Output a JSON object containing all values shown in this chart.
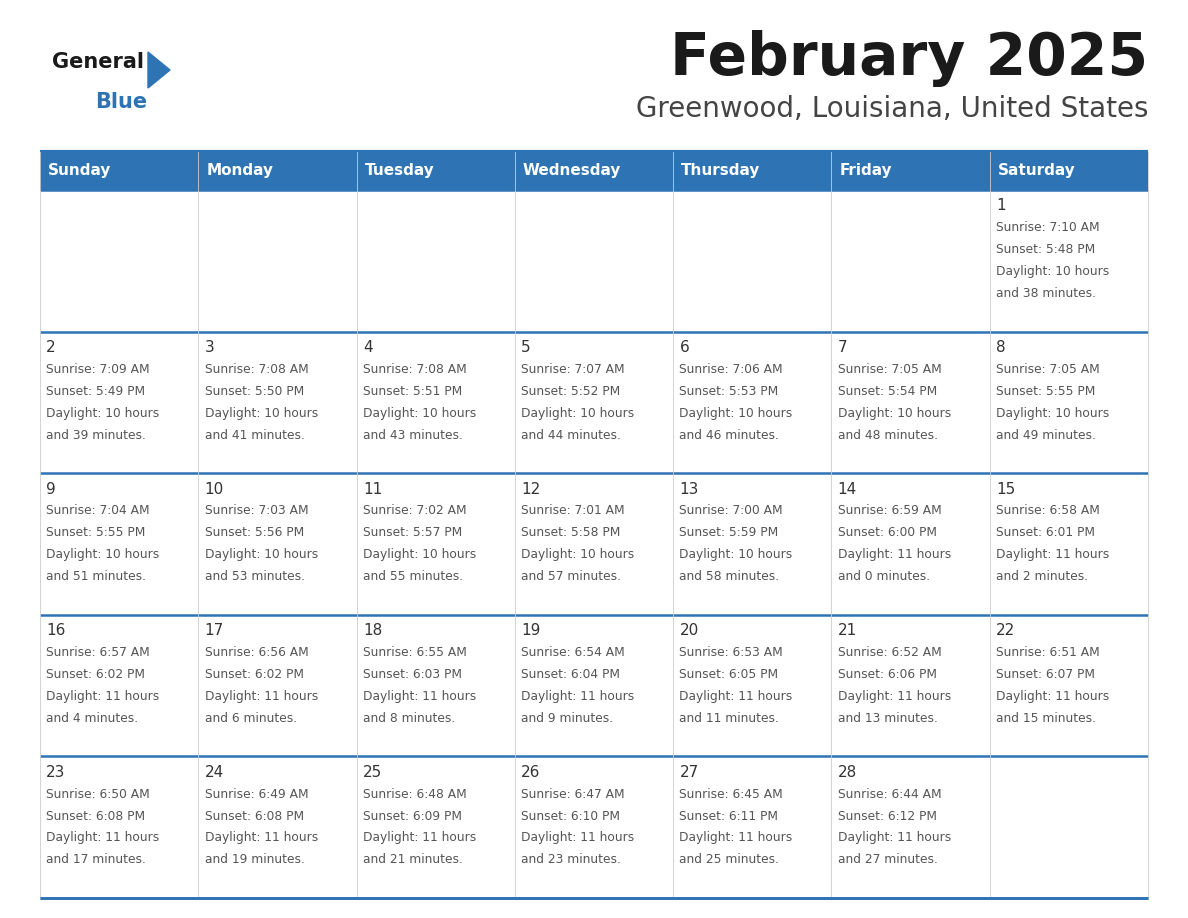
{
  "title": "February 2025",
  "subtitle": "Greenwood, Louisiana, United States",
  "header_bg": "#2E74B5",
  "header_text_color": "#FFFFFF",
  "border_color": "#2E74B5",
  "row_sep_color": "#2E74B5",
  "col_sep_color": "#CCCCCC",
  "cell_bg": "#FFFFFF",
  "title_color": "#1A1A1A",
  "subtitle_color": "#444444",
  "day_num_color": "#333333",
  "cell_text_color": "#555555",
  "logo_general_color": "#1A1A1A",
  "logo_blue_color": "#2E74B5",
  "logo_triangle_color": "#2E74B5",
  "day_headers": [
    "Sunday",
    "Monday",
    "Tuesday",
    "Wednesday",
    "Thursday",
    "Friday",
    "Saturday"
  ],
  "calendar": [
    [
      {
        "day": "",
        "sunrise": "",
        "sunset": "",
        "daylight": ""
      },
      {
        "day": "",
        "sunrise": "",
        "sunset": "",
        "daylight": ""
      },
      {
        "day": "",
        "sunrise": "",
        "sunset": "",
        "daylight": ""
      },
      {
        "day": "",
        "sunrise": "",
        "sunset": "",
        "daylight": ""
      },
      {
        "day": "",
        "sunrise": "",
        "sunset": "",
        "daylight": ""
      },
      {
        "day": "",
        "sunrise": "",
        "sunset": "",
        "daylight": ""
      },
      {
        "day": "1",
        "sunrise": "7:10 AM",
        "sunset": "5:48 PM",
        "daylight": "10 hours\nand 38 minutes."
      }
    ],
    [
      {
        "day": "2",
        "sunrise": "7:09 AM",
        "sunset": "5:49 PM",
        "daylight": "10 hours\nand 39 minutes."
      },
      {
        "day": "3",
        "sunrise": "7:08 AM",
        "sunset": "5:50 PM",
        "daylight": "10 hours\nand 41 minutes."
      },
      {
        "day": "4",
        "sunrise": "7:08 AM",
        "sunset": "5:51 PM",
        "daylight": "10 hours\nand 43 minutes."
      },
      {
        "day": "5",
        "sunrise": "7:07 AM",
        "sunset": "5:52 PM",
        "daylight": "10 hours\nand 44 minutes."
      },
      {
        "day": "6",
        "sunrise": "7:06 AM",
        "sunset": "5:53 PM",
        "daylight": "10 hours\nand 46 minutes."
      },
      {
        "day": "7",
        "sunrise": "7:05 AM",
        "sunset": "5:54 PM",
        "daylight": "10 hours\nand 48 minutes."
      },
      {
        "day": "8",
        "sunrise": "7:05 AM",
        "sunset": "5:55 PM",
        "daylight": "10 hours\nand 49 minutes."
      }
    ],
    [
      {
        "day": "9",
        "sunrise": "7:04 AM",
        "sunset": "5:55 PM",
        "daylight": "10 hours\nand 51 minutes."
      },
      {
        "day": "10",
        "sunrise": "7:03 AM",
        "sunset": "5:56 PM",
        "daylight": "10 hours\nand 53 minutes."
      },
      {
        "day": "11",
        "sunrise": "7:02 AM",
        "sunset": "5:57 PM",
        "daylight": "10 hours\nand 55 minutes."
      },
      {
        "day": "12",
        "sunrise": "7:01 AM",
        "sunset": "5:58 PM",
        "daylight": "10 hours\nand 57 minutes."
      },
      {
        "day": "13",
        "sunrise": "7:00 AM",
        "sunset": "5:59 PM",
        "daylight": "10 hours\nand 58 minutes."
      },
      {
        "day": "14",
        "sunrise": "6:59 AM",
        "sunset": "6:00 PM",
        "daylight": "11 hours\nand 0 minutes."
      },
      {
        "day": "15",
        "sunrise": "6:58 AM",
        "sunset": "6:01 PM",
        "daylight": "11 hours\nand 2 minutes."
      }
    ],
    [
      {
        "day": "16",
        "sunrise": "6:57 AM",
        "sunset": "6:02 PM",
        "daylight": "11 hours\nand 4 minutes."
      },
      {
        "day": "17",
        "sunrise": "6:56 AM",
        "sunset": "6:02 PM",
        "daylight": "11 hours\nand 6 minutes."
      },
      {
        "day": "18",
        "sunrise": "6:55 AM",
        "sunset": "6:03 PM",
        "daylight": "11 hours\nand 8 minutes."
      },
      {
        "day": "19",
        "sunrise": "6:54 AM",
        "sunset": "6:04 PM",
        "daylight": "11 hours\nand 9 minutes."
      },
      {
        "day": "20",
        "sunrise": "6:53 AM",
        "sunset": "6:05 PM",
        "daylight": "11 hours\nand 11 minutes."
      },
      {
        "day": "21",
        "sunrise": "6:52 AM",
        "sunset": "6:06 PM",
        "daylight": "11 hours\nand 13 minutes."
      },
      {
        "day": "22",
        "sunrise": "6:51 AM",
        "sunset": "6:07 PM",
        "daylight": "11 hours\nand 15 minutes."
      }
    ],
    [
      {
        "day": "23",
        "sunrise": "6:50 AM",
        "sunset": "6:08 PM",
        "daylight": "11 hours\nand 17 minutes."
      },
      {
        "day": "24",
        "sunrise": "6:49 AM",
        "sunset": "6:08 PM",
        "daylight": "11 hours\nand 19 minutes."
      },
      {
        "day": "25",
        "sunrise": "6:48 AM",
        "sunset": "6:09 PM",
        "daylight": "11 hours\nand 21 minutes."
      },
      {
        "day": "26",
        "sunrise": "6:47 AM",
        "sunset": "6:10 PM",
        "daylight": "11 hours\nand 23 minutes."
      },
      {
        "day": "27",
        "sunrise": "6:45 AM",
        "sunset": "6:11 PM",
        "daylight": "11 hours\nand 25 minutes."
      },
      {
        "day": "28",
        "sunrise": "6:44 AM",
        "sunset": "6:12 PM",
        "daylight": "11 hours\nand 27 minutes."
      },
      {
        "day": "",
        "sunrise": "",
        "sunset": "",
        "daylight": ""
      }
    ]
  ]
}
